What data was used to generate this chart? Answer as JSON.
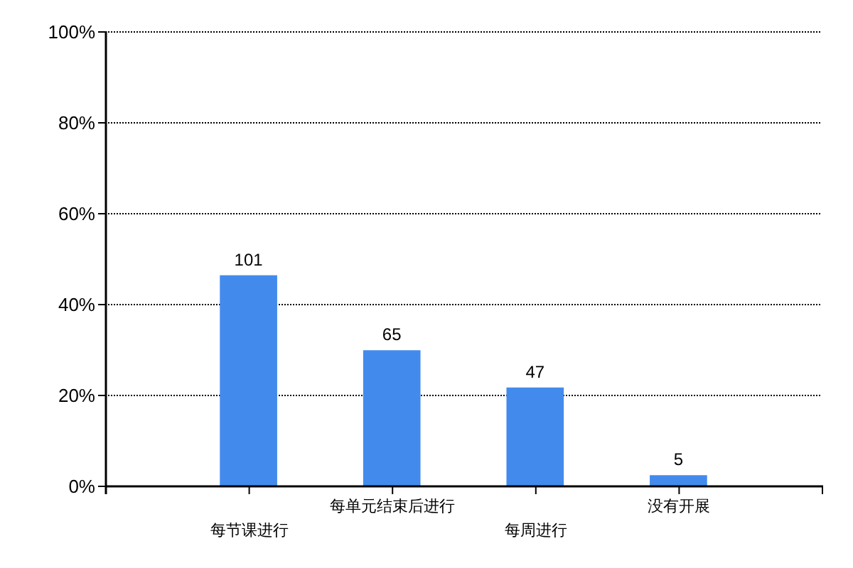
{
  "chart_data": {
    "type": "bar",
    "categories": [
      "每节课进行",
      "每单元结束后进行",
      "每周进行",
      "没有开展"
    ],
    "values": [
      46.3,
      29.8,
      21.6,
      2.3
    ],
    "annotations": [
      {
        "text": "101",
        "x": "每节课进行",
        "y": 46.3
      },
      {
        "text": "65",
        "x": "每单元结束后进行",
        "y": 29.8
      },
      {
        "text": "47",
        "x": "每周进行",
        "y": 21.6
      },
      {
        "text": "5",
        "x": "没有开展",
        "y": 2.3
      }
    ],
    "color": "#428bec",
    "ylim": [
      0,
      100
    ],
    "yticks": [
      {
        "value": 0,
        "label": "0%"
      },
      {
        "value": 20,
        "label": "20%"
      },
      {
        "value": 40,
        "label": "40%"
      },
      {
        "value": 60,
        "label": "60%"
      },
      {
        "value": 80,
        "label": "80%"
      },
      {
        "value": 100,
        "label": "100%"
      }
    ],
    "grid": "y"
  }
}
